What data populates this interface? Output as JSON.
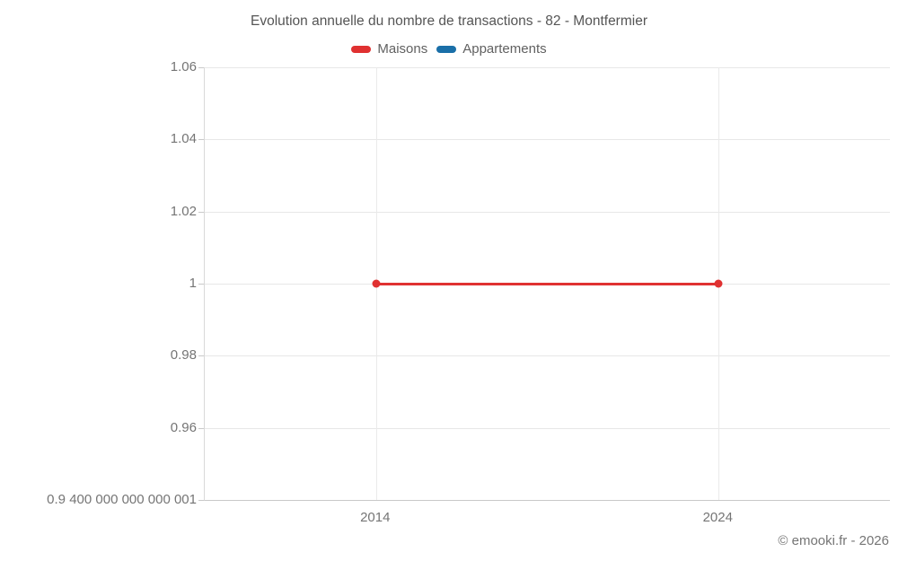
{
  "footer": {
    "copyright": "© emooki.fr - 2026"
  },
  "colors": {
    "background": "#ffffff",
    "title_text": "#555555",
    "legend_text": "#616161",
    "axis_text": "#757575",
    "gridline": "#e7e7e7",
    "axis_line": "#c9c9c9",
    "maisons_red": "#e03131",
    "appartements_blue": "#1a6fa8"
  },
  "chart_data": {
    "type": "line",
    "title": "Evolution annuelle du nombre de transactions - 82 - Montfermier",
    "xlabel": "",
    "ylabel": "",
    "legend_position": "top",
    "grid": true,
    "x": [
      2014,
      2024
    ],
    "xlim": [
      2009,
      2029
    ],
    "ylim": [
      0.9400000000000001,
      1.06
    ],
    "x_ticks": [
      {
        "value": 2014,
        "label": "2014"
      },
      {
        "value": 2024,
        "label": "2024"
      }
    ],
    "y_ticks": [
      {
        "value": 1.06,
        "label": "1.06"
      },
      {
        "value": 1.04,
        "label": "1.04"
      },
      {
        "value": 1.02,
        "label": "1.02"
      },
      {
        "value": 1.0,
        "label": "1"
      },
      {
        "value": 0.98,
        "label": "0.98"
      },
      {
        "value": 0.96,
        "label": "0.96"
      },
      {
        "value": 0.9400000000000001,
        "label": "0.9 400 000 000 000 001"
      }
    ],
    "series": [
      {
        "name": "Maisons",
        "color": "#e03131",
        "values": [
          1,
          1
        ]
      },
      {
        "name": "Appartements",
        "color": "#1a6fa8",
        "values": [
          null,
          null
        ]
      }
    ]
  }
}
